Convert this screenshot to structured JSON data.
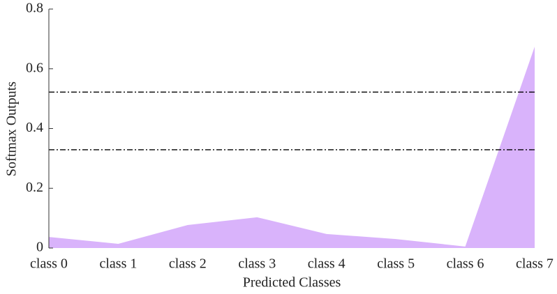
{
  "chart_data": {
    "type": "area",
    "x_label": "Predicted Classes",
    "y_label": "Softmax Outputs",
    "categories": [
      "class 0",
      "class 1",
      "class 2",
      "class 3",
      "class 4",
      "class 5",
      "class 6",
      "class 7"
    ],
    "values": [
      0.037,
      0.014,
      0.077,
      0.103,
      0.047,
      0.03,
      0.005,
      0.674
    ],
    "color": "#d9b3fb",
    "reference_lines": [
      0.522,
      0.329
    ],
    "ylim": [
      0,
      0.8
    ],
    "yticks": [
      0,
      0.2,
      0.4,
      0.6,
      0.8
    ],
    "grid": false
  }
}
